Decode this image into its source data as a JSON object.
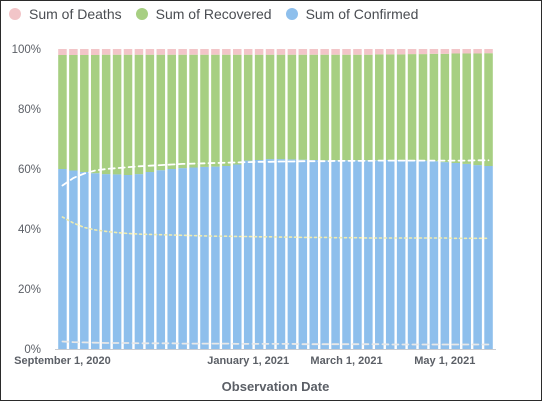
{
  "chart_data": {
    "type": "bar",
    "stacked": true,
    "normalized": true,
    "xlabel": "Observation Date",
    "ylabel": "",
    "ylim": [
      0,
      100
    ],
    "yticks": [
      "0%",
      "20%",
      "40%",
      "60%",
      "80%",
      "100%"
    ],
    "x_tick_labels": [
      {
        "label": "September 1, 2020",
        "bar_index": 0
      },
      {
        "label": "January 1, 2021",
        "bar_index": 17
      },
      {
        "label": "March 1, 2021",
        "bar_index": 26
      },
      {
        "label": "May 1, 2021",
        "bar_index": 35
      }
    ],
    "legend_position": "top-left",
    "grid": false,
    "series": [
      {
        "name": "Sum of Confirmed",
        "color": "#8ebfec",
        "values": [
          60,
          59.5,
          59,
          58.6,
          58.3,
          58.2,
          58,
          58.3,
          59,
          59.6,
          60,
          60.3,
          60.5,
          60.7,
          60.8,
          61,
          61.5,
          62.8,
          63,
          63.3,
          63.3,
          63.2,
          63.1,
          63,
          62.9,
          62.9,
          62.9,
          62.9,
          62.9,
          62.9,
          63,
          63,
          62.9,
          62.8,
          62.6,
          62.3,
          62,
          61.7,
          61.3,
          61
        ]
      },
      {
        "name": "Sum of Recovered",
        "color": "#a7cf82",
        "values": [
          38,
          38.5,
          39,
          39.4,
          39.8,
          39.9,
          40.1,
          39.8,
          39.1,
          38.5,
          38.1,
          37.8,
          37.6,
          37.4,
          37.3,
          37.1,
          36.6,
          35.3,
          35.1,
          34.8,
          34.8,
          34.9,
          35,
          35.1,
          35.2,
          35.2,
          35.2,
          35.2,
          35.2,
          35.3,
          35.2,
          35.2,
          35.4,
          35.5,
          35.8,
          36.1,
          36.5,
          36.8,
          37.2,
          37.6
        ]
      },
      {
        "name": "Sum of Deaths",
        "color": "#f2c5c8",
        "values": [
          2,
          2,
          2,
          2,
          1.9,
          1.9,
          1.9,
          1.9,
          1.9,
          1.9,
          1.9,
          1.9,
          1.9,
          1.9,
          1.9,
          1.9,
          1.9,
          1.9,
          1.9,
          1.9,
          1.9,
          1.9,
          1.9,
          1.9,
          1.9,
          1.9,
          1.9,
          1.9,
          1.9,
          1.8,
          1.8,
          1.8,
          1.7,
          1.7,
          1.6,
          1.6,
          1.5,
          1.5,
          1.5,
          1.4
        ]
      }
    ],
    "trend_lines": [
      {
        "style": "dashed",
        "color": "#ffffff",
        "values": [
          54.5,
          57,
          58.5,
          59.5,
          60,
          60.3,
          60.6,
          60.9,
          61.1,
          61.3,
          61.5,
          61.7,
          61.8,
          61.9,
          62,
          62.1,
          62.2,
          62.3,
          62.4,
          62.4,
          62.5,
          62.5,
          62.6,
          62.6,
          62.6,
          62.7,
          62.7,
          62.7,
          62.7,
          62.8,
          62.8,
          62.8,
          62.8,
          62.8,
          62.8,
          62.8,
          62.8,
          62.8,
          62.9,
          62.9
        ]
      },
      {
        "style": "dotted",
        "color": "#f0ecb0",
        "values": [
          44,
          42,
          40.5,
          39.7,
          39.2,
          38.8,
          38.5,
          38.3,
          38.2,
          38.1,
          38,
          37.9,
          37.8,
          37.7,
          37.6,
          37.6,
          37.5,
          37.5,
          37.4,
          37.4,
          37.3,
          37.3,
          37.2,
          37.2,
          37.2,
          37.1,
          37.1,
          37.1,
          37,
          37,
          37,
          37,
          37,
          37,
          37,
          37,
          36.9,
          36.9,
          36.9,
          36.9
        ]
      },
      {
        "style": "dashed",
        "color": "#e8e8e8",
        "values": [
          2.5,
          2.3,
          2.2,
          2.1,
          2,
          2,
          2,
          1.9,
          1.9,
          1.9,
          1.9,
          1.8,
          1.8,
          1.8,
          1.8,
          1.8,
          1.7,
          1.7,
          1.7,
          1.7,
          1.7,
          1.7,
          1.6,
          1.6,
          1.6,
          1.6,
          1.6,
          1.6,
          1.6,
          1.6,
          1.5,
          1.5,
          1.5,
          1.5,
          1.5,
          1.5,
          1.5,
          1.5,
          1.5,
          1.5
        ]
      }
    ]
  }
}
